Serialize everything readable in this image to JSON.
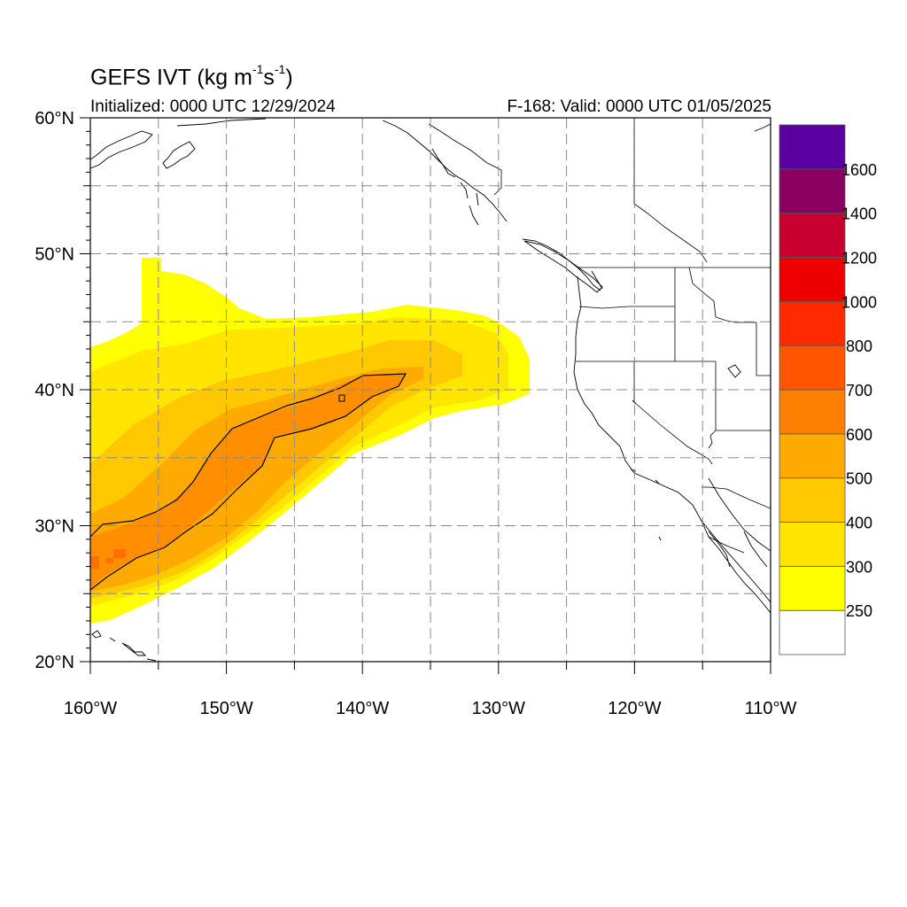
{
  "header": {
    "title_main": "GEFS IVT (kg m",
    "title_exp1": "-1",
    "title_mid": "s",
    "title_exp2": "-1",
    "title_end": ")",
    "initialized": "Initialized: 0000 UTC 12/29/2024",
    "valid": "F-168: Valid: 0000 UTC 01/05/2025"
  },
  "map": {
    "lat_ticks": [
      {
        "value": 60,
        "label": "60°N"
      },
      {
        "value": 50,
        "label": "50°N"
      },
      {
        "value": 40,
        "label": "40°N"
      },
      {
        "value": 30,
        "label": "30°N"
      },
      {
        "value": 20,
        "label": "20°N"
      }
    ],
    "lon_ticks": [
      {
        "value": -160,
        "label": "160°W"
      },
      {
        "value": -150,
        "label": "150°W"
      },
      {
        "value": -140,
        "label": "140°W"
      },
      {
        "value": -130,
        "label": "130°W"
      },
      {
        "value": -120,
        "label": "120°W"
      },
      {
        "value": -110,
        "label": "110°W"
      }
    ],
    "lon_range": [
      -160,
      -110
    ],
    "lat_range": [
      20,
      60
    ],
    "grid": true,
    "contour_level": 600
  },
  "colorbar": {
    "levels": [
      {
        "label": "250",
        "color": "#ffff00"
      },
      {
        "label": "300",
        "color": "#ffe500"
      },
      {
        "label": "400",
        "color": "#ffc800"
      },
      {
        "label": "500",
        "color": "#ffaa00"
      },
      {
        "label": "600",
        "color": "#ff8000"
      },
      {
        "label": "700",
        "color": "#ff5500"
      },
      {
        "label": "800",
        "color": "#ff2a00"
      },
      {
        "label": "1000",
        "color": "#ee0000"
      },
      {
        "label": "1200",
        "color": "#c80030"
      },
      {
        "label": "1400",
        "color": "#8a0060"
      },
      {
        "label": "1600",
        "color": "#5a00a0"
      }
    ],
    "below_color": "#ffffff"
  }
}
